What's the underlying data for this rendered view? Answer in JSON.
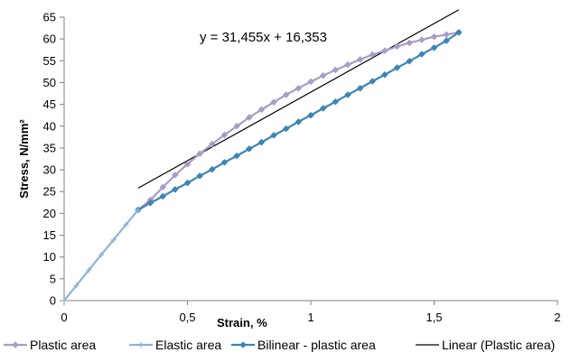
{
  "chart_data": {
    "type": "line",
    "title": "",
    "xlabel": "Strain, %",
    "ylabel": "Stress, N/mm²",
    "xlim": [
      0,
      2
    ],
    "ylim": [
      0,
      65
    ],
    "x_ticks": [
      0,
      0.5,
      1,
      1.5,
      2
    ],
    "x_tick_labels": [
      "0",
      "0,5",
      "1",
      "1,5",
      "2"
    ],
    "y_ticks": [
      0,
      5,
      10,
      15,
      20,
      25,
      30,
      35,
      40,
      45,
      50,
      55,
      60,
      65
    ],
    "y_tick_labels": [
      "0",
      "5",
      "10",
      "15",
      "20",
      "25",
      "30",
      "35",
      "40",
      "45",
      "50",
      "55",
      "60",
      "65"
    ],
    "grid": false,
    "legend_position": "bottom",
    "annotation": "y = 31,455x + 16,353",
    "series": [
      {
        "name": "Plastic area",
        "color": "#a99cc5",
        "marker": "diamond",
        "x": [
          0.3,
          0.35,
          0.4,
          0.45,
          0.5,
          0.55,
          0.6,
          0.65,
          0.7,
          0.75,
          0.8,
          0.85,
          0.9,
          0.95,
          1.0,
          1.05,
          1.1,
          1.15,
          1.2,
          1.25,
          1.3,
          1.35,
          1.4,
          1.45,
          1.5,
          1.55,
          1.6
        ],
        "y": [
          20.8,
          23.1,
          26.0,
          28.8,
          31.3,
          33.7,
          35.9,
          38.0,
          40.0,
          42.0,
          43.8,
          45.5,
          47.2,
          48.7,
          50.2,
          51.6,
          52.9,
          54.1,
          55.3,
          56.4,
          57.3,
          58.3,
          59.1,
          59.8,
          60.5,
          61.0,
          61.5
        ]
      },
      {
        "name": "Elastic area",
        "color": "#8eb4d6",
        "marker": "plus",
        "x": [
          0,
          0.05,
          0.1,
          0.15,
          0.2,
          0.25,
          0.3
        ],
        "y": [
          0,
          3.5,
          7.0,
          10.5,
          13.9,
          17.4,
          20.8
        ]
      },
      {
        "name": "Bilinear - plastic area",
        "color": "#3c85b5",
        "marker": "diamond",
        "x": [
          0.3,
          0.35,
          0.4,
          0.45,
          0.5,
          0.55,
          0.6,
          0.65,
          0.7,
          0.75,
          0.8,
          0.85,
          0.9,
          0.95,
          1.0,
          1.05,
          1.1,
          1.15,
          1.2,
          1.25,
          1.3,
          1.35,
          1.4,
          1.45,
          1.5,
          1.55,
          1.6
        ],
        "y": [
          20.8,
          22.4,
          23.9,
          25.5,
          27.0,
          28.6,
          30.1,
          31.7,
          33.2,
          34.8,
          36.3,
          37.9,
          39.4,
          41.0,
          42.5,
          44.1,
          45.6,
          47.2,
          48.7,
          50.3,
          51.8,
          53.4,
          54.9,
          56.5,
          58.0,
          59.6,
          61.5
        ]
      },
      {
        "name": "Linear (Plastic area)",
        "color": "#000000",
        "marker": "none",
        "x": [
          0.3,
          1.6
        ],
        "y": [
          25.79,
          66.68
        ]
      }
    ]
  }
}
